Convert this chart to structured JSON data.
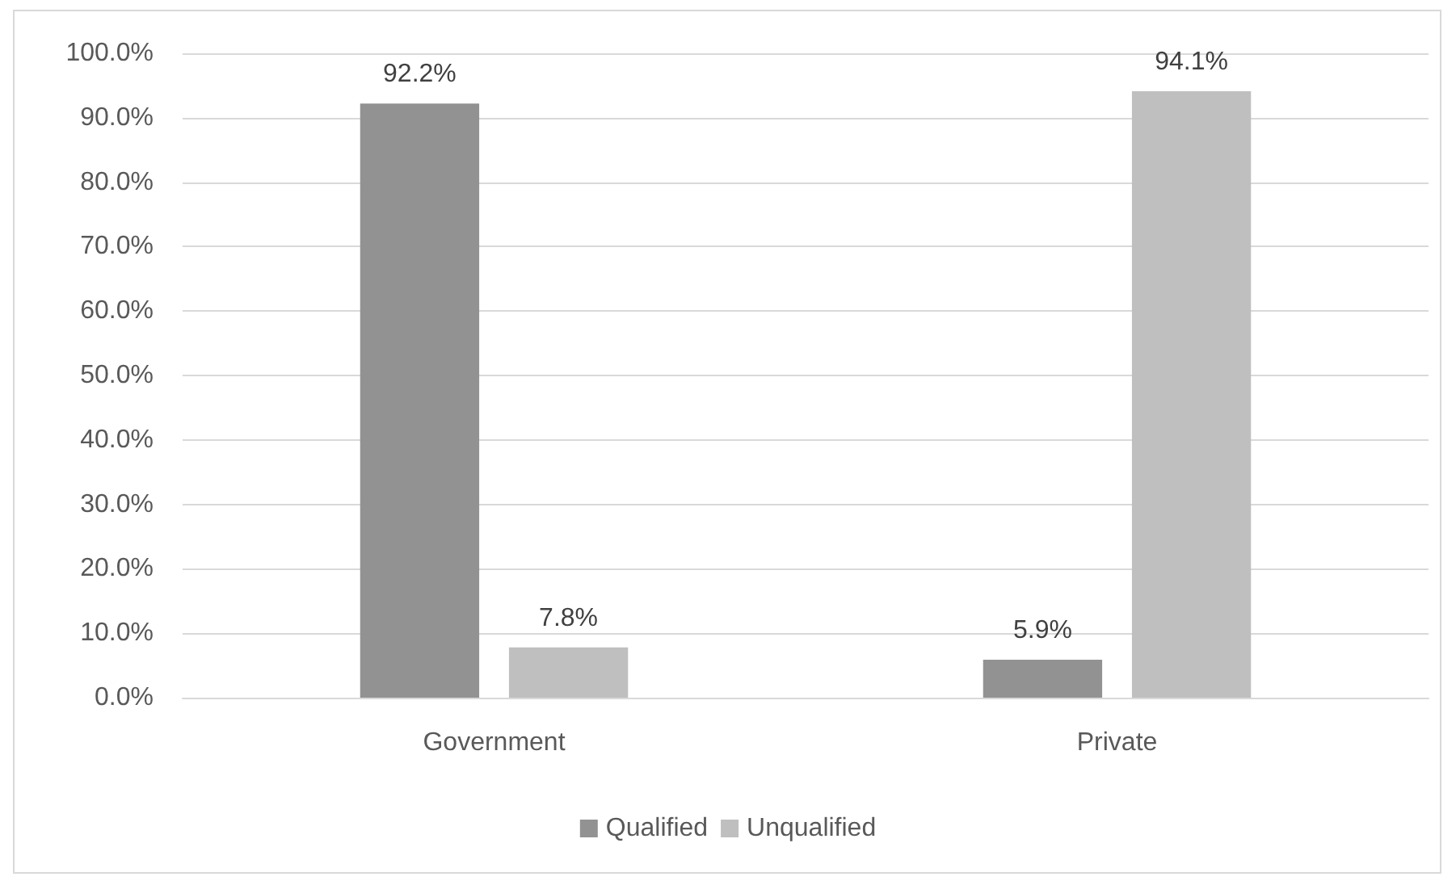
{
  "chart_data": {
    "type": "bar",
    "categories": [
      "Government",
      "Private"
    ],
    "series": [
      {
        "name": "Qualified",
        "color": "#929292",
        "values": [
          92.2,
          5.9
        ],
        "value_labels": [
          "92.2%",
          "5.9%"
        ]
      },
      {
        "name": "Unqualified",
        "color": "#bfbfbf",
        "values": [
          7.8,
          94.1
        ],
        "value_labels": [
          "7.8%",
          "94.1%"
        ]
      }
    ],
    "ylim": [
      0,
      100
    ],
    "yticks": [
      {
        "value": 0,
        "label": "0.0%"
      },
      {
        "value": 10,
        "label": "10.0%"
      },
      {
        "value": 20,
        "label": "20.0%"
      },
      {
        "value": 30,
        "label": "30.0%"
      },
      {
        "value": 40,
        "label": "40.0%"
      },
      {
        "value": 50,
        "label": "50.0%"
      },
      {
        "value": 60,
        "label": "60.0%"
      },
      {
        "value": 70,
        "label": "70.0%"
      },
      {
        "value": 80,
        "label": "80.0%"
      },
      {
        "value": 90,
        "label": "90.0%"
      },
      {
        "value": 100,
        "label": "100.0%"
      }
    ],
    "grid": "y",
    "legend": "bottom"
  }
}
